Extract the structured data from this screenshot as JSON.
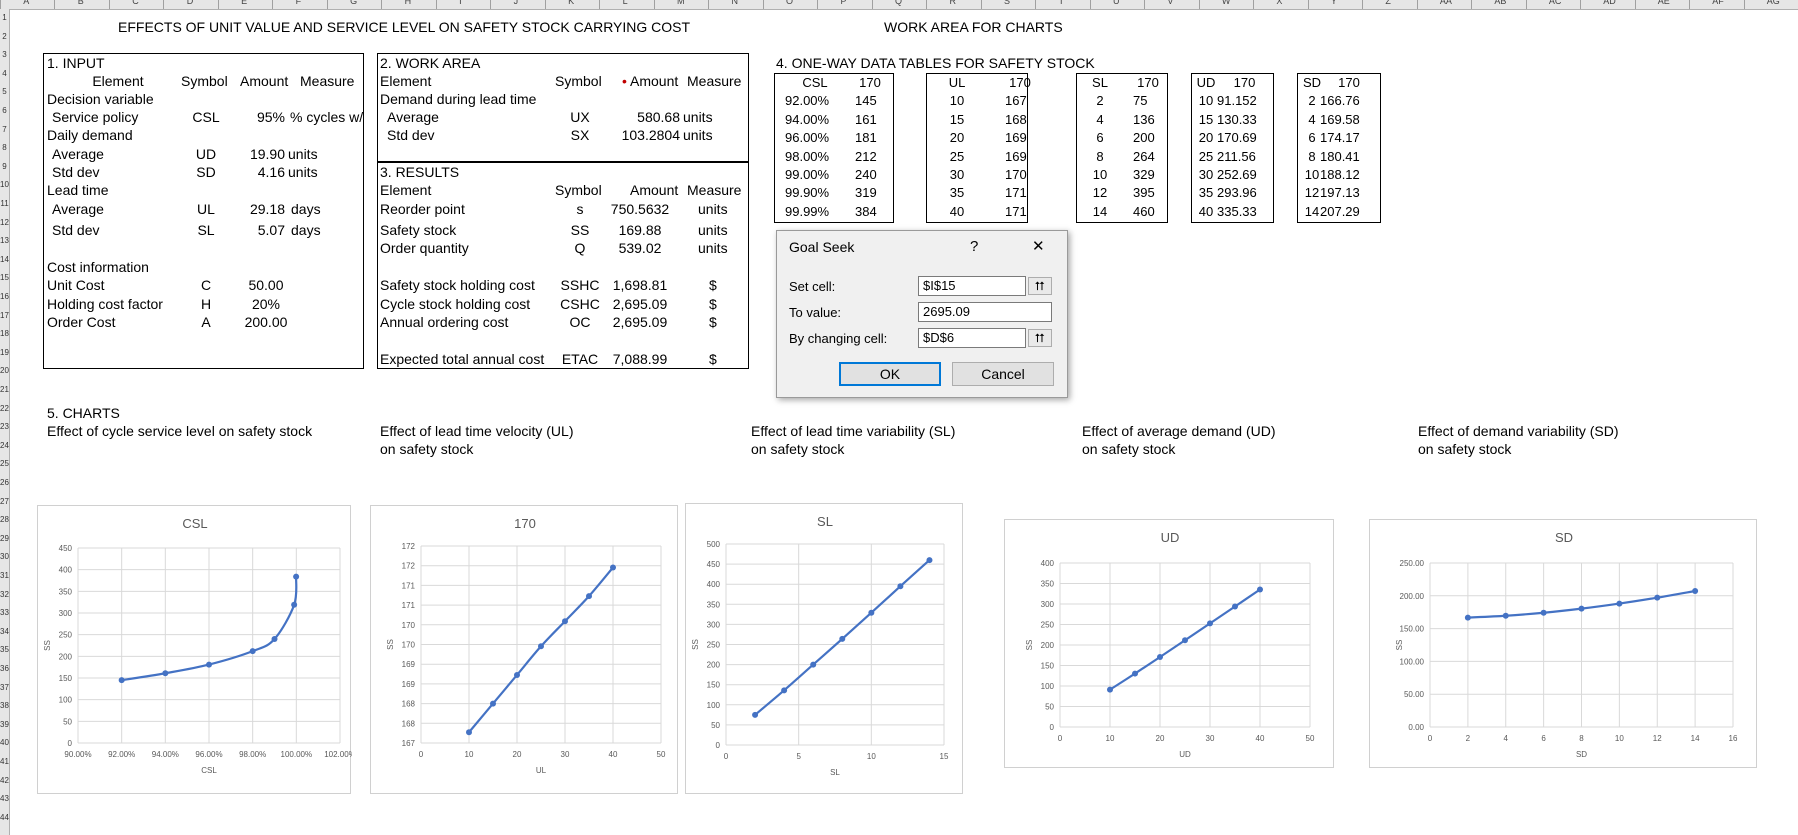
{
  "sheet": {
    "column_headers": [
      "A",
      "B",
      "C",
      "D",
      "E",
      "F",
      "G",
      "H",
      "I",
      "J",
      "K",
      "L",
      "M",
      "N",
      "O",
      "P",
      "Q",
      "R",
      "S",
      "T",
      "U",
      "V",
      "W",
      "X",
      "Y",
      "Z",
      "AA",
      "AB",
      "AC",
      "AD",
      "AE",
      "AF",
      "AG"
    ],
    "row_headers": [
      "1",
      "2",
      "3",
      "4",
      "5",
      "6",
      "7",
      "8",
      "9",
      "10",
      "11",
      "12",
      "13",
      "14",
      "15",
      "16",
      "17",
      "18",
      "19",
      "20",
      "21",
      "22",
      "23",
      "24",
      "25",
      "26",
      "27",
      "28",
      "29",
      "30",
      "31",
      "32",
      "33",
      "34",
      "35",
      "36",
      "37",
      "38",
      "39",
      "40",
      "41",
      "42",
      "43",
      "44"
    ],
    "title_left": "EFFECTS OF UNIT VALUE AND SERVICE LEVEL ON SAFETY STOCK CARRYING COST",
    "title_right": "WORK AREA FOR CHARTS"
  },
  "input": {
    "heading": "1. INPUT",
    "col_element": "Element",
    "col_symbol": "Symbol",
    "col_amount": "Amount",
    "col_measure": "Measure",
    "decision_variable": "Decision variable",
    "service_policy": {
      "label": "Service policy",
      "symbol": "CSL",
      "amount": "95%",
      "measure": "% cycles w/o"
    },
    "daily_demand": "Daily demand",
    "ud": {
      "label": "Average",
      "symbol": "UD",
      "amount": "19.90",
      "measure": "units"
    },
    "sd": {
      "label": "Std dev",
      "symbol": "SD",
      "amount": "4.16",
      "measure": "units"
    },
    "lead_time": "Lead time",
    "ul": {
      "label": "Average",
      "symbol": "UL",
      "amount": "29.18",
      "measure": "days"
    },
    "sl": {
      "label": "Std dev",
      "symbol": "SL",
      "amount": "5.07",
      "measure": "days"
    },
    "cost_info": "Cost information",
    "unit_cost": {
      "label": "Unit Cost",
      "symbol": "C",
      "amount": "50.00"
    },
    "holding": {
      "label": "Holding cost factor",
      "symbol": "H",
      "amount": "20%"
    },
    "order_cost": {
      "label": "Order Cost",
      "symbol": "A",
      "amount": "200.00"
    }
  },
  "work": {
    "heading": "2. WORK AREA",
    "col_element": "Element",
    "col_symbol": "Symbol",
    "col_amount": "Amount",
    "col_measure": "Measure",
    "demand_lt": "Demand during lead time",
    "ux": {
      "label": "Average",
      "symbol": "UX",
      "amount": "580.68",
      "measure": "units"
    },
    "sx": {
      "label": "Std dev",
      "symbol": "SX",
      "amount": "103.2804",
      "measure": "units"
    }
  },
  "results": {
    "heading": "3. RESULTS",
    "col_element": "Element",
    "col_symbol": "Symbol",
    "col_amount": "Amount",
    "col_measure": "Measure",
    "rop": {
      "label": "Reorder point",
      "symbol": "s",
      "amount": "750.5632",
      "measure": "units"
    },
    "ss": {
      "label": "Safety stock",
      "symbol": "SS",
      "amount": "169.88",
      "measure": "units"
    },
    "q": {
      "label": "Order quantity",
      "symbol": "Q",
      "amount": "539.02",
      "measure": "units"
    },
    "sshc": {
      "label": "Safety stock holding cost",
      "symbol": "SSHC",
      "amount": "1,698.81",
      "measure": "$"
    },
    "cshc": {
      "label": "Cycle stock holding cost",
      "symbol": "CSHC",
      "amount": "2,695.09",
      "measure": "$"
    },
    "oc": {
      "label": "Annual ordering cost",
      "symbol": "OC",
      "amount": "2,695.09",
      "measure": "$"
    },
    "etac": {
      "label": "Expected total annual cost",
      "symbol": "ETAC",
      "amount": "7,088.99",
      "measure": "$"
    }
  },
  "tables": {
    "heading": "4. ONE-WAY DATA TABLES FOR SAFETY STOCK",
    "csl": {
      "h1": "CSL",
      "h2": "170",
      "rows": [
        [
          "92.00%",
          "145"
        ],
        [
          "94.00%",
          "161"
        ],
        [
          "96.00%",
          "181"
        ],
        [
          "98.00%",
          "212"
        ],
        [
          "99.00%",
          "240"
        ],
        [
          "99.90%",
          "319"
        ],
        [
          "99.99%",
          "384"
        ]
      ]
    },
    "ul": {
      "h1": "UL",
      "h2": "170",
      "rows": [
        [
          "10",
          "167"
        ],
        [
          "15",
          "168"
        ],
        [
          "20",
          "169"
        ],
        [
          "25",
          "169"
        ],
        [
          "30",
          "170"
        ],
        [
          "35",
          "171"
        ],
        [
          "40",
          "171"
        ]
      ]
    },
    "sl": {
      "h1": "SL",
      "h2": "170",
      "rows": [
        [
          "2",
          "75"
        ],
        [
          "4",
          "136"
        ],
        [
          "6",
          "200"
        ],
        [
          "8",
          "264"
        ],
        [
          "10",
          "329"
        ],
        [
          "12",
          "395"
        ],
        [
          "14",
          "460"
        ]
      ]
    },
    "ud": {
      "h1": "UD",
      "h2": "170",
      "rows": [
        [
          "10",
          "91.152"
        ],
        [
          "15",
          "130.33"
        ],
        [
          "20",
          "170.69"
        ],
        [
          "25",
          "211.56"
        ],
        [
          "30",
          "252.69"
        ],
        [
          "35",
          "293.96"
        ],
        [
          "40",
          "335.33"
        ]
      ]
    },
    "sd": {
      "h1": "SD",
      "h2": "170",
      "rows": [
        [
          "2",
          "166.76"
        ],
        [
          "4",
          "169.58"
        ],
        [
          "6",
          "174.17"
        ],
        [
          "8",
          "180.41"
        ],
        [
          "10",
          "188.12"
        ],
        [
          "12",
          "197.13"
        ],
        [
          "14",
          "207.29"
        ]
      ]
    }
  },
  "goal_seek": {
    "title": "Goal Seek",
    "help": "?",
    "close": "✕",
    "set_cell_label": "Set cell:",
    "set_cell_value": "$I$15",
    "to_value_label": "To value:",
    "to_value_value": "2695.09",
    "changing_label": "By changing cell:",
    "changing_value": "$D$6",
    "ok": "OK",
    "cancel": "Cancel",
    "pick_icon": "collapse-arrow-icon"
  },
  "charts_section": {
    "heading": "5. CHARTS",
    "c1_title": "Effect of cycle service level on safety stock",
    "c2_title_1": "Effect of lead time velocity (UL)",
    "c2_title_2": "on safety stock",
    "c3_title_1": "Effect of lead time variability (SL)",
    "c3_title_2": "on safety stock",
    "c4_title_1": "Effect of average demand (UD)",
    "c4_title_2": "on safety stock",
    "c5_title_1": "Effect of demand variability (SD)",
    "c5_title_2": "on safety stock"
  },
  "chart_data": [
    {
      "type": "line",
      "title": "CSL",
      "xlabel": "CSL",
      "ylabel": "SS",
      "x": [
        0.92,
        0.94,
        0.96,
        0.98,
        0.99,
        0.999,
        0.9999
      ],
      "y": [
        145,
        161,
        181,
        212,
        240,
        319,
        384
      ],
      "xlim": [
        0.9,
        1.02
      ],
      "ylim": [
        0,
        450
      ],
      "xticks": [
        "90.00%",
        "92.00%",
        "94.00%",
        "96.00%",
        "98.00%",
        "100.00%",
        "102.00%"
      ],
      "yticks": [
        "0",
        "50",
        "100",
        "150",
        "200",
        "250",
        "300",
        "350",
        "400",
        "450"
      ],
      "color": "#4472c4"
    },
    {
      "type": "line",
      "title": "170",
      "xlabel": "UL",
      "ylabel": "SS",
      "x": [
        10,
        15,
        20,
        25,
        30,
        35,
        40
      ],
      "y": [
        167.3,
        168.1,
        168.9,
        169.7,
        170.4,
        171.1,
        171.9
      ],
      "xlim": [
        0,
        50
      ],
      "ylim": [
        167,
        172.5
      ],
      "xticks": [
        "0",
        "10",
        "20",
        "30",
        "40",
        "50"
      ],
      "yticks": [
        "167",
        "168",
        "168",
        "169",
        "169",
        "170",
        "170",
        "171",
        "171",
        "172",
        "172"
      ],
      "color": "#4472c4"
    },
    {
      "type": "line",
      "title": "SL",
      "xlabel": "SL",
      "ylabel": "SS",
      "x": [
        2,
        4,
        6,
        8,
        10,
        12,
        14
      ],
      "y": [
        75,
        136,
        200,
        264,
        329,
        395,
        460
      ],
      "xlim": [
        0,
        15
      ],
      "ylim": [
        0,
        500
      ],
      "xticks": [
        "0",
        "5",
        "10",
        "15"
      ],
      "yticks": [
        "0",
        "50",
        "100",
        "150",
        "200",
        "250",
        "300",
        "350",
        "400",
        "450",
        "500"
      ],
      "color": "#4472c4"
    },
    {
      "type": "line",
      "title": "UD",
      "xlabel": "UD",
      "ylabel": "SS",
      "x": [
        10,
        15,
        20,
        25,
        30,
        35,
        40
      ],
      "y": [
        91.152,
        130.33,
        170.69,
        211.56,
        252.69,
        293.96,
        335.33
      ],
      "xlim": [
        0,
        50
      ],
      "ylim": [
        0,
        400
      ],
      "xticks": [
        "0",
        "10",
        "20",
        "30",
        "40",
        "50"
      ],
      "yticks": [
        "0",
        "50",
        "100",
        "150",
        "200",
        "250",
        "300",
        "350",
        "400"
      ],
      "color": "#4472c4"
    },
    {
      "type": "line",
      "title": "SD",
      "xlabel": "SD",
      "ylabel": "SS",
      "x": [
        2,
        4,
        6,
        8,
        10,
        12,
        14
      ],
      "y": [
        166.76,
        169.58,
        174.17,
        180.41,
        188.12,
        197.13,
        207.29
      ],
      "xlim": [
        0,
        16
      ],
      "ylim": [
        0,
        250
      ],
      "xticks": [
        "0",
        "2",
        "4",
        "6",
        "8",
        "10",
        "12",
        "14",
        "16"
      ],
      "yticks": [
        "0.00",
        "50.00",
        "100.00",
        "150.00",
        "200.00",
        "250.00"
      ],
      "color": "#4472c4"
    }
  ]
}
